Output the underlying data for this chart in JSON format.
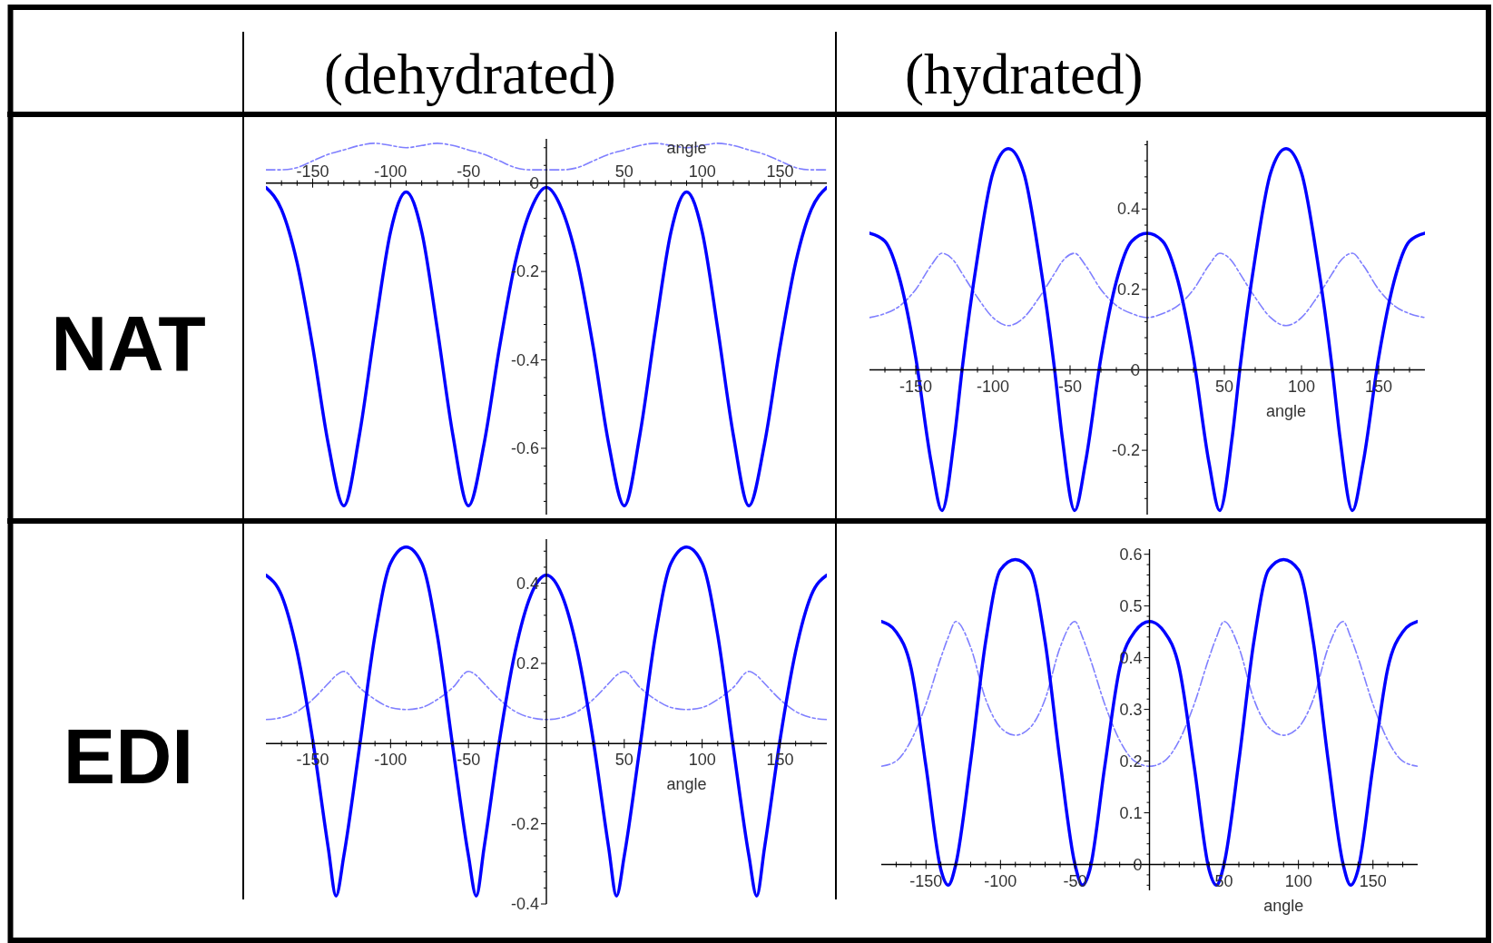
{
  "chart_data": [
    {
      "type": "line",
      "title": "(dehydrated)",
      "ylabel": "NAT",
      "xlabel": "angle",
      "x": [
        -180,
        -170,
        -160,
        -150,
        -140,
        -130,
        -120,
        -110,
        -100,
        -90,
        -80,
        -70,
        -60,
        -50,
        -40,
        -30,
        -20,
        -10,
        0,
        10,
        20,
        30,
        40,
        50,
        60,
        70,
        80,
        90,
        100,
        110,
        120,
        130,
        140,
        150,
        160,
        170,
        180
      ],
      "series": [
        {
          "color": "#7f7fff",
          "line_style": "dashed",
          "values": [
            0.03,
            0.03,
            0.035,
            0.05,
            0.065,
            0.075,
            0.085,
            0.09,
            0.085,
            0.08,
            0.085,
            0.09,
            0.085,
            0.075,
            0.065,
            0.05,
            0.035,
            0.03,
            0.03,
            0.03,
            0.035,
            0.05,
            0.065,
            0.075,
            0.085,
            0.09,
            0.085,
            0.08,
            0.085,
            0.09,
            0.085,
            0.075,
            0.065,
            0.05,
            0.035,
            0.03,
            0.03
          ]
        },
        {
          "color": "#0000ff",
          "line_style": "solid",
          "values": [
            -0.01,
            -0.06,
            -0.18,
            -0.37,
            -0.59,
            -0.73,
            -0.57,
            -0.33,
            -0.11,
            -0.02,
            -0.11,
            -0.33,
            -0.57,
            -0.73,
            -0.59,
            -0.37,
            -0.18,
            -0.06,
            -0.01,
            -0.06,
            -0.18,
            -0.37,
            -0.59,
            -0.73,
            -0.57,
            -0.33,
            -0.11,
            -0.02,
            -0.11,
            -0.33,
            -0.57,
            -0.73,
            -0.59,
            -0.37,
            -0.18,
            -0.06,
            -0.01
          ]
        }
      ],
      "xlim": [
        -180,
        180
      ],
      "ylim": [
        -0.75,
        0.1
      ],
      "xticks": [
        {
          "value": -170,
          "label": null
        },
        {
          "value": -160,
          "label": null
        },
        -150,
        {
          "value": -140,
          "label": null
        },
        {
          "value": -130,
          "label": null
        },
        {
          "value": -120,
          "label": null
        },
        {
          "value": -110,
          "label": null
        },
        -100,
        {
          "value": -90,
          "label": null
        },
        {
          "value": -80,
          "label": null
        },
        {
          "value": -70,
          "label": null
        },
        {
          "value": -60,
          "label": null
        },
        -50,
        {
          "value": -40,
          "label": null
        },
        {
          "value": -30,
          "label": null
        },
        {
          "value": -20,
          "label": null
        },
        {
          "value": -10,
          "label": null
        },
        {
          "value": 10,
          "label": null
        },
        {
          "value": 20,
          "label": null
        },
        {
          "value": 30,
          "label": null
        },
        {
          "value": 40,
          "label": null
        },
        50,
        {
          "value": 60,
          "label": null
        },
        {
          "value": 70,
          "label": null
        },
        {
          "value": 80,
          "label": null
        },
        {
          "value": 90,
          "label": null
        },
        100,
        {
          "value": 110,
          "label": null
        },
        {
          "value": 120,
          "label": null
        },
        {
          "value": 130,
          "label": null
        },
        {
          "value": 140,
          "label": null
        },
        150,
        {
          "value": 160,
          "label": null
        },
        {
          "value": 170,
          "label": null
        }
      ],
      "yticks": [
        {
          "value": 0.08,
          "label": null
        },
        {
          "value": 0.04,
          "label": null
        },
        0,
        {
          "value": -0.04,
          "label": null
        },
        {
          "value": -0.08,
          "label": null
        },
        {
          "value": -0.12,
          "label": null
        },
        {
          "value": -0.16,
          "label": null
        },
        -0.2,
        {
          "value": -0.24,
          "label": null
        },
        {
          "value": -0.28,
          "label": null
        },
        {
          "value": -0.32,
          "label": null
        },
        {
          "value": -0.36,
          "label": null
        },
        -0.4,
        {
          "value": -0.44,
          "label": null
        },
        {
          "value": -0.48,
          "label": null
        },
        {
          "value": -0.52,
          "label": null
        },
        {
          "value": -0.56,
          "label": null
        },
        -0.6,
        {
          "value": -0.64,
          "label": null
        },
        {
          "value": -0.68,
          "label": null
        },
        {
          "value": -0.72,
          "label": null
        }
      ]
    },
    {
      "type": "line",
      "title": "(hydrated)",
      "xlabel": "angle",
      "x": [
        -180,
        -170,
        -160,
        -150,
        -140,
        -133,
        -125,
        -120,
        -110,
        -100,
        -90,
        -80,
        -70,
        -60,
        -55,
        -47,
        -40,
        -30,
        -20,
        -10,
        0,
        10,
        20,
        30,
        40,
        47,
        55,
        60,
        70,
        80,
        90,
        100,
        110,
        120,
        125,
        133,
        140,
        150,
        160,
        170,
        180
      ],
      "series": [
        {
          "color": "#7f7fff",
          "line_style": "dashed",
          "values": [
            0.13,
            0.14,
            0.16,
            0.2,
            0.26,
            0.29,
            0.27,
            0.24,
            0.18,
            0.13,
            0.11,
            0.13,
            0.18,
            0.24,
            0.27,
            0.29,
            0.26,
            0.2,
            0.16,
            0.14,
            0.13,
            0.14,
            0.16,
            0.2,
            0.26,
            0.29,
            0.27,
            0.24,
            0.18,
            0.13,
            0.11,
            0.13,
            0.18,
            0.24,
            0.27,
            0.29,
            0.26,
            0.2,
            0.16,
            0.14,
            0.13
          ]
        },
        {
          "color": "#0000ff",
          "line_style": "solid",
          "values": [
            0.34,
            0.32,
            0.22,
            0.03,
            -0.23,
            -0.35,
            -0.17,
            0,
            0.28,
            0.49,
            0.55,
            0.49,
            0.28,
            0,
            -0.17,
            -0.35,
            -0.23,
            0.03,
            0.22,
            0.32,
            0.34,
            0.32,
            0.22,
            0.03,
            -0.23,
            -0.35,
            -0.17,
            0,
            0.28,
            0.49,
            0.55,
            0.49,
            0.28,
            0,
            -0.17,
            -0.35,
            -0.23,
            0.03,
            0.22,
            0.32,
            0.34
          ]
        }
      ],
      "xlim": [
        -180,
        180
      ],
      "ylim": [
        -0.36,
        0.57
      ],
      "xticks": [
        {
          "value": -170,
          "label": null
        },
        {
          "value": -160,
          "label": null
        },
        -150,
        {
          "value": -140,
          "label": null
        },
        {
          "value": -130,
          "label": null
        },
        {
          "value": -120,
          "label": null
        },
        {
          "value": -110,
          "label": null
        },
        -100,
        {
          "value": -90,
          "label": null
        },
        {
          "value": -80,
          "label": null
        },
        {
          "value": -70,
          "label": null
        },
        {
          "value": -60,
          "label": null
        },
        -50,
        {
          "value": -40,
          "label": null
        },
        {
          "value": -30,
          "label": null
        },
        {
          "value": -20,
          "label": null
        },
        {
          "value": -10,
          "label": null
        },
        {
          "value": 10,
          "label": null
        },
        {
          "value": 20,
          "label": null
        },
        {
          "value": 30,
          "label": null
        },
        {
          "value": 40,
          "label": null
        },
        50,
        {
          "value": 60,
          "label": null
        },
        {
          "value": 70,
          "label": null
        },
        {
          "value": 80,
          "label": null
        },
        {
          "value": 90,
          "label": null
        },
        100,
        {
          "value": 110,
          "label": null
        },
        {
          "value": 120,
          "label": null
        },
        {
          "value": 130,
          "label": null
        },
        {
          "value": 140,
          "label": null
        },
        150,
        {
          "value": 160,
          "label": null
        },
        {
          "value": 170,
          "label": null
        }
      ],
      "yticks": [
        {
          "value": 0.56,
          "label": null
        },
        {
          "value": 0.52,
          "label": null
        },
        {
          "value": 0.48,
          "label": null
        },
        {
          "value": 0.44,
          "label": null
        },
        0.4,
        {
          "value": 0.36,
          "label": null
        },
        {
          "value": 0.32,
          "label": null
        },
        {
          "value": 0.28,
          "label": null
        },
        {
          "value": 0.24,
          "label": null
        },
        0.2,
        {
          "value": 0.16,
          "label": null
        },
        {
          "value": 0.12,
          "label": null
        },
        {
          "value": 0.08,
          "label": null
        },
        {
          "value": 0.04,
          "label": null
        },
        0,
        {
          "value": -0.04,
          "label": null
        },
        {
          "value": -0.08,
          "label": null
        },
        {
          "value": -0.12,
          "label": null
        },
        {
          "value": -0.16,
          "label": null
        },
        -0.2,
        {
          "value": -0.24,
          "label": null
        },
        {
          "value": -0.28,
          "label": null
        },
        {
          "value": -0.32,
          "label": null
        }
      ]
    },
    {
      "type": "line",
      "ylabel": "EDI",
      "xlabel": "angle",
      "x": [
        -180,
        -170,
        -160,
        -150,
        -140,
        -135,
        -130,
        -120,
        -110,
        -100,
        -90,
        -80,
        -70,
        -60,
        -50,
        -45,
        -40,
        -30,
        -20,
        -10,
        0,
        10,
        20,
        30,
        40,
        45,
        50,
        60,
        70,
        80,
        90,
        100,
        110,
        120,
        130,
        135,
        140,
        150,
        160,
        170,
        180
      ],
      "series": [
        {
          "color": "#7f7fff",
          "line_style": "dashed",
          "values": [
            0.06,
            0.065,
            0.08,
            0.11,
            0.15,
            0.17,
            0.18,
            0.14,
            0.11,
            0.09,
            0.085,
            0.09,
            0.11,
            0.14,
            0.18,
            0.17,
            0.15,
            0.11,
            0.08,
            0.065,
            0.06,
            0.065,
            0.08,
            0.11,
            0.15,
            0.17,
            0.18,
            0.14,
            0.11,
            0.09,
            0.085,
            0.09,
            0.11,
            0.14,
            0.18,
            0.17,
            0.15,
            0.11,
            0.08,
            0.065,
            0.06
          ]
        },
        {
          "color": "#0000ff",
          "line_style": "solid",
          "values": [
            0.42,
            0.37,
            0.23,
            0.01,
            -0.26,
            -0.38,
            -0.28,
            -0.01,
            0.27,
            0.45,
            0.49,
            0.45,
            0.27,
            -0.01,
            -0.28,
            -0.38,
            -0.26,
            0.01,
            0.23,
            0.37,
            0.42,
            0.37,
            0.23,
            0.01,
            -0.26,
            -0.38,
            -0.28,
            -0.01,
            0.27,
            0.45,
            0.49,
            0.45,
            0.27,
            -0.01,
            -0.28,
            -0.38,
            -0.26,
            0.01,
            0.23,
            0.37,
            0.42
          ]
        }
      ],
      "xlim": [
        -180,
        180
      ],
      "ylim": [
        -0.4,
        0.51
      ],
      "xticks": [
        {
          "value": -170,
          "label": null
        },
        {
          "value": -160,
          "label": null
        },
        -150,
        {
          "value": -140,
          "label": null
        },
        {
          "value": -130,
          "label": null
        },
        {
          "value": -120,
          "label": null
        },
        {
          "value": -110,
          "label": null
        },
        -100,
        {
          "value": -90,
          "label": null
        },
        {
          "value": -80,
          "label": null
        },
        {
          "value": -70,
          "label": null
        },
        {
          "value": -60,
          "label": null
        },
        -50,
        {
          "value": -40,
          "label": null
        },
        {
          "value": -30,
          "label": null
        },
        {
          "value": -20,
          "label": null
        },
        {
          "value": -10,
          "label": null
        },
        {
          "value": 10,
          "label": null
        },
        {
          "value": 20,
          "label": null
        },
        {
          "value": 30,
          "label": null
        },
        {
          "value": 40,
          "label": null
        },
        50,
        {
          "value": 60,
          "label": null
        },
        {
          "value": 70,
          "label": null
        },
        {
          "value": 80,
          "label": null
        },
        {
          "value": 90,
          "label": null
        },
        100,
        {
          "value": 110,
          "label": null
        },
        {
          "value": 120,
          "label": null
        },
        {
          "value": 130,
          "label": null
        },
        {
          "value": 140,
          "label": null
        },
        150,
        {
          "value": 160,
          "label": null
        },
        {
          "value": 170,
          "label": null
        }
      ],
      "yticks": [
        {
          "value": 0.48,
          "label": null
        },
        {
          "value": 0.44,
          "label": null
        },
        0.4,
        {
          "value": 0.36,
          "label": null
        },
        {
          "value": 0.32,
          "label": null
        },
        {
          "value": 0.28,
          "label": null
        },
        {
          "value": 0.24,
          "label": null
        },
        0.2,
        {
          "value": 0.16,
          "label": null
        },
        {
          "value": 0.12,
          "label": null
        },
        {
          "value": 0.08,
          "label": null
        },
        {
          "value": 0.04,
          "label": null
        },
        {
          "value": -0.04,
          "label": null
        },
        {
          "value": -0.08,
          "label": null
        },
        {
          "value": -0.12,
          "label": null
        },
        {
          "value": -0.16,
          "label": null
        },
        -0.2,
        {
          "value": -0.24,
          "label": null
        },
        {
          "value": -0.28,
          "label": null
        },
        {
          "value": -0.32,
          "label": null
        },
        {
          "value": -0.36,
          "label": null
        },
        -0.4
      ]
    },
    {
      "type": "line",
      "xlabel": "angle",
      "x": [
        -180,
        -170,
        -160,
        -150,
        -140,
        -135,
        -130,
        -120,
        -110,
        -100,
        -90,
        -80,
        -70,
        -60,
        -50,
        -45,
        -40,
        -30,
        -20,
        -10,
        0,
        10,
        20,
        30,
        40,
        45,
        50,
        60,
        70,
        80,
        90,
        100,
        110,
        120,
        130,
        135,
        140,
        150,
        160,
        170,
        180
      ],
      "series": [
        {
          "color": "#7f7fff",
          "line_style": "dashed",
          "values": [
            0.19,
            0.2,
            0.24,
            0.31,
            0.4,
            0.44,
            0.47,
            0.42,
            0.32,
            0.265,
            0.25,
            0.265,
            0.32,
            0.42,
            0.47,
            0.44,
            0.4,
            0.31,
            0.24,
            0.2,
            0.19,
            0.2,
            0.24,
            0.31,
            0.4,
            0.44,
            0.47,
            0.42,
            0.32,
            0.265,
            0.25,
            0.265,
            0.32,
            0.42,
            0.47,
            0.44,
            0.4,
            0.31,
            0.24,
            0.2,
            0.19
          ]
        },
        {
          "color": "#0000ff",
          "line_style": "solid",
          "values": [
            0.47,
            0.45,
            0.38,
            0.19,
            -0.01,
            -0.04,
            0,
            0.2,
            0.43,
            0.57,
            0.59,
            0.57,
            0.43,
            0.2,
            0,
            -0.04,
            -0.01,
            0.19,
            0.38,
            0.45,
            0.47,
            0.45,
            0.38,
            0.19,
            -0.01,
            -0.04,
            0,
            0.2,
            0.43,
            0.57,
            0.59,
            0.57,
            0.43,
            0.2,
            0,
            -0.04,
            -0.01,
            0.19,
            0.38,
            0.45,
            0.47
          ]
        }
      ],
      "xlim": [
        -180,
        180
      ],
      "ylim": [
        -0.05,
        0.61
      ],
      "xticks": [
        {
          "value": -170,
          "label": null
        },
        {
          "value": -160,
          "label": null
        },
        -150,
        {
          "value": -140,
          "label": null
        },
        {
          "value": -130,
          "label": null
        },
        {
          "value": -120,
          "label": null
        },
        {
          "value": -110,
          "label": null
        },
        -100,
        {
          "value": -90,
          "label": null
        },
        {
          "value": -80,
          "label": null
        },
        {
          "value": -70,
          "label": null
        },
        {
          "value": -60,
          "label": null
        },
        -50,
        {
          "value": -40,
          "label": null
        },
        {
          "value": -30,
          "label": null
        },
        {
          "value": -20,
          "label": null
        },
        {
          "value": -10,
          "label": null
        },
        {
          "value": 10,
          "label": null
        },
        {
          "value": 20,
          "label": null
        },
        {
          "value": 30,
          "label": null
        },
        {
          "value": 40,
          "label": null
        },
        50,
        {
          "value": 60,
          "label": null
        },
        {
          "value": 70,
          "label": null
        },
        {
          "value": 80,
          "label": null
        },
        {
          "value": 90,
          "label": null
        },
        100,
        {
          "value": 110,
          "label": null
        },
        {
          "value": 120,
          "label": null
        },
        {
          "value": 130,
          "label": null
        },
        {
          "value": 140,
          "label": null
        },
        150,
        {
          "value": 160,
          "label": null
        },
        {
          "value": 170,
          "label": null
        }
      ],
      "yticks": [
        0.6,
        {
          "value": 0.58,
          "label": null
        },
        {
          "value": 0.56,
          "label": null
        },
        {
          "value": 0.54,
          "label": null
        },
        {
          "value": 0.52,
          "label": null
        },
        0.5,
        {
          "value": 0.48,
          "label": null
        },
        {
          "value": 0.46,
          "label": null
        },
        {
          "value": 0.44,
          "label": null
        },
        {
          "value": 0.42,
          "label": null
        },
        0.4,
        {
          "value": 0.38,
          "label": null
        },
        {
          "value": 0.36,
          "label": null
        },
        {
          "value": 0.34,
          "label": null
        },
        {
          "value": 0.32,
          "label": null
        },
        0.3,
        {
          "value": 0.28,
          "label": null
        },
        {
          "value": 0.26,
          "label": null
        },
        {
          "value": 0.24,
          "label": null
        },
        {
          "value": 0.22,
          "label": null
        },
        0.2,
        {
          "value": 0.18,
          "label": null
        },
        {
          "value": 0.16,
          "label": null
        },
        {
          "value": 0.14,
          "label": null
        },
        {
          "value": 0.12,
          "label": null
        },
        0.1,
        {
          "value": 0.08,
          "label": null
        },
        {
          "value": 0.06,
          "label": null
        },
        {
          "value": 0.04,
          "label": null
        },
        {
          "value": 0.02,
          "label": null
        },
        0,
        {
          "value": -0.02,
          "label": null
        },
        {
          "value": -0.04,
          "label": null
        }
      ]
    }
  ]
}
